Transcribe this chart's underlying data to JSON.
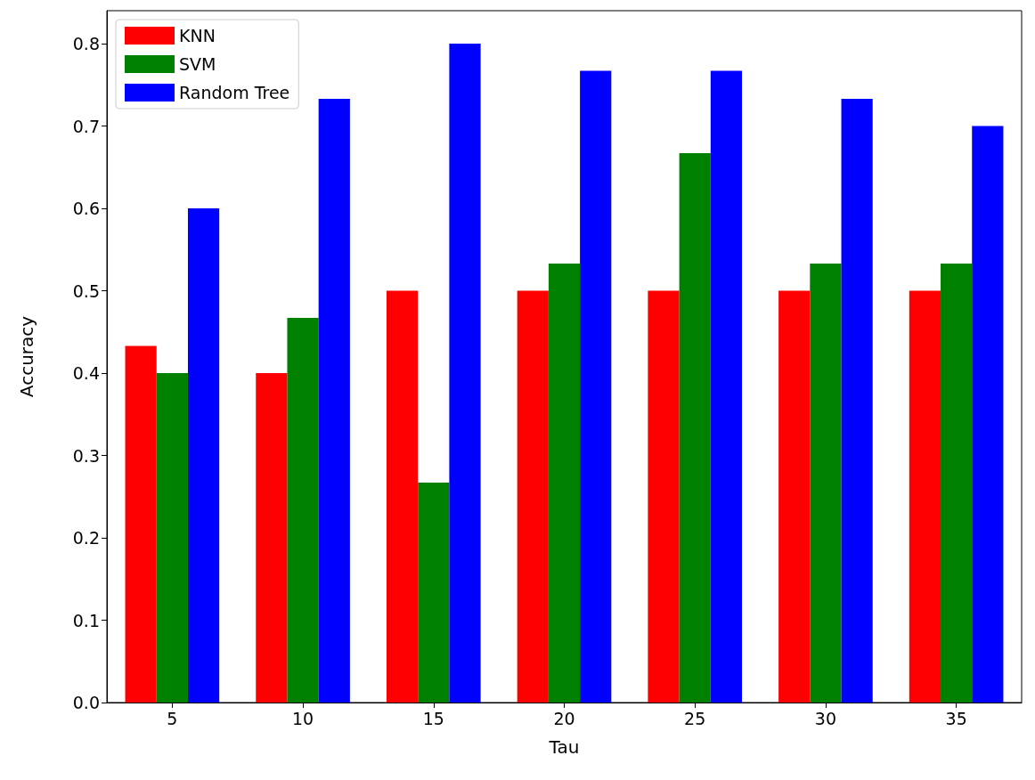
{
  "chart_data": {
    "type": "bar",
    "xlabel": "Tau",
    "ylabel": "Accuracy",
    "categories": [
      "5",
      "10",
      "15",
      "20",
      "25",
      "30",
      "35"
    ],
    "series": [
      {
        "name": "KNN",
        "color": "#ff0000",
        "values": [
          0.433,
          0.4,
          0.5,
          0.5,
          0.5,
          0.5,
          0.5
        ]
      },
      {
        "name": "SVM",
        "color": "#008000",
        "values": [
          0.4,
          0.467,
          0.267,
          0.533,
          0.667,
          0.533,
          0.533
        ]
      },
      {
        "name": "Random Tree",
        "color": "#0000ff",
        "values": [
          0.6,
          0.733,
          0.8,
          0.767,
          0.767,
          0.733,
          0.7
        ]
      }
    ],
    "ylim": [
      0,
      0.84
    ],
    "yticks": [
      {
        "value": 0,
        "label": "0.0"
      },
      0.1,
      0.2,
      0.3,
      0.4,
      0.5,
      0.6,
      0.7,
      0.8
    ],
    "grid": false,
    "legend": "top left"
  }
}
